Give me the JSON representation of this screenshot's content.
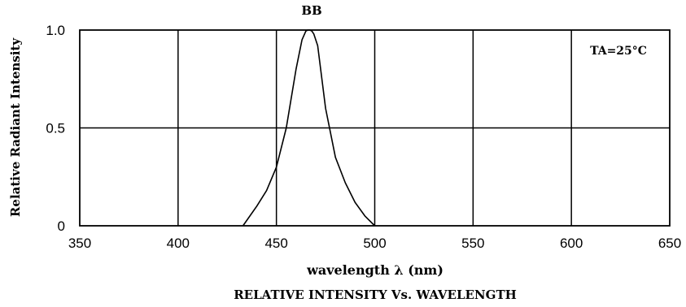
{
  "chart_data": {
    "type": "line",
    "title": "BB",
    "subtitle": "RELATIVE INTENSITY Vs. WAVELENGTH",
    "xlabel": "wavelength λ (nm)",
    "ylabel": "Relative Radiant Intensity",
    "annotation": "TA=25°C",
    "xlim": [
      350,
      650
    ],
    "ylim": [
      0,
      1.0
    ],
    "x_ticks": [
      350,
      400,
      450,
      500,
      550,
      600,
      650
    ],
    "x_tick_labels": [
      "350",
      "400",
      "450",
      "500",
      "550",
      "600",
      "650"
    ],
    "y_ticks": [
      0,
      0.5,
      1.0
    ],
    "y_tick_labels": [
      "0",
      "0.5",
      "1.0"
    ],
    "grid": true,
    "series": [
      {
        "x": [
          433,
          440,
          445,
          450,
          455,
          460,
          463,
          465,
          466,
          467,
          468,
          469,
          471,
          475,
          480,
          485,
          490,
          495,
          500
        ],
        "y": [
          0,
          0.1,
          0.18,
          0.3,
          0.5,
          0.8,
          0.95,
          0.995,
          1.0,
          1.0,
          0.995,
          0.98,
          0.92,
          0.6,
          0.35,
          0.22,
          0.12,
          0.05,
          0
        ]
      }
    ],
    "colors": {
      "line": "#000000",
      "grid": "#000000",
      "background": "#ffffff"
    }
  }
}
